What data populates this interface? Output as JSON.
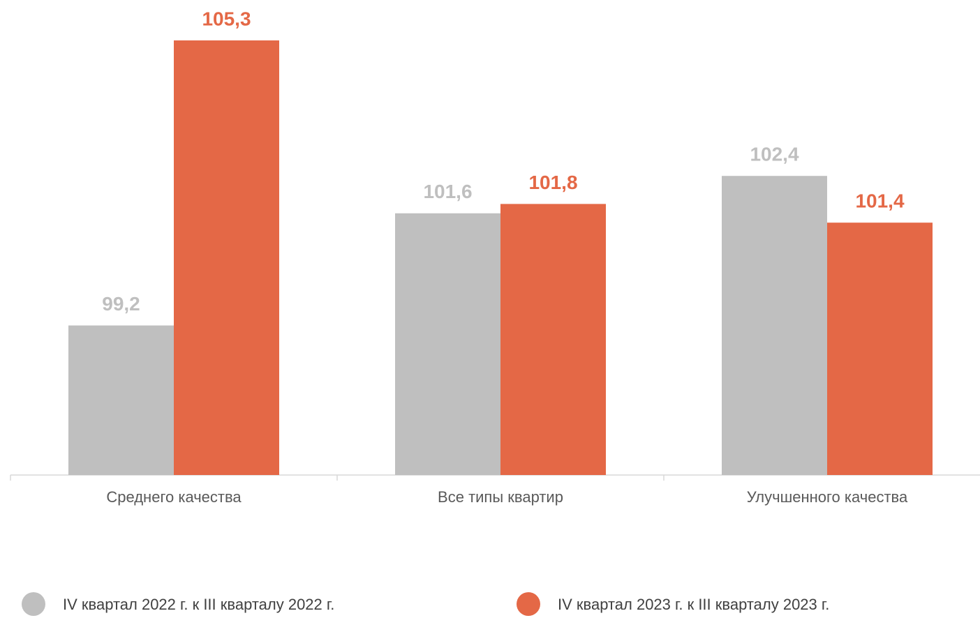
{
  "chart_data": {
    "type": "bar",
    "categories": [
      "Среднего качества",
      "Все типы квартир",
      "Улучшенного  качества"
    ],
    "series": [
      {
        "name": "IV квартал 2022 г. к III кварталу 2022 г.",
        "color": "#bfbfbf",
        "values": [
          99.2,
          101.6,
          102.4
        ],
        "value_labels": [
          "99,2",
          "101,6",
          "102,4"
        ]
      },
      {
        "name": "IV квартал 2023 г. к III кварталу 2023 г.",
        "color": "#e46846",
        "values": [
          105.3,
          101.8,
          101.4
        ],
        "value_labels": [
          "105,3",
          "101,8",
          "101,4"
        ]
      }
    ],
    "ylim": [
      96,
      106
    ],
    "legend": "bottom"
  }
}
